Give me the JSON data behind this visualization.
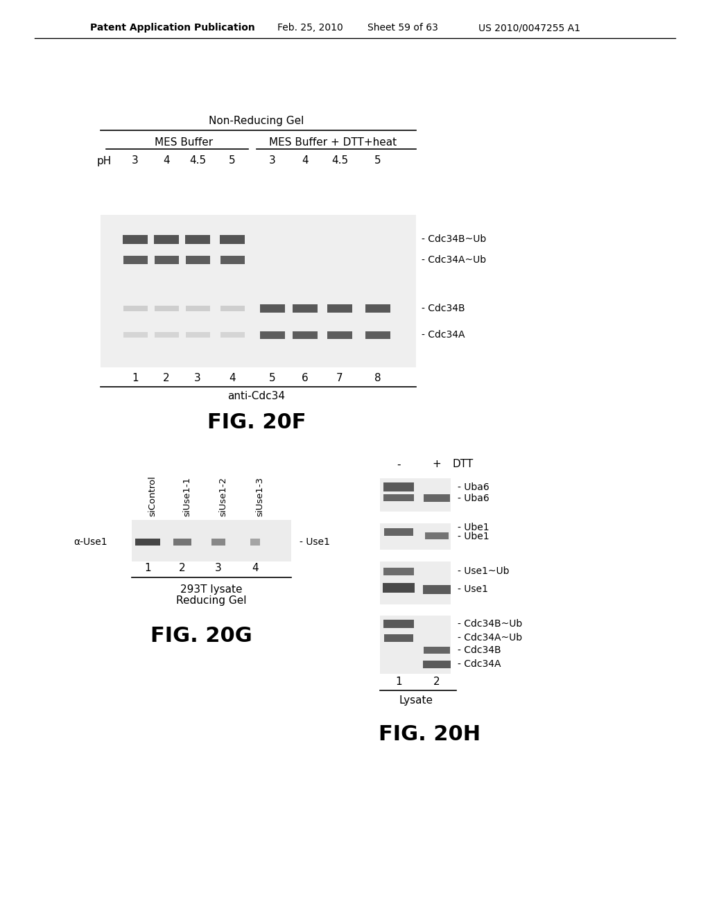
{
  "bg_color": "#ffffff",
  "header_text": "Patent Application Publication",
  "header_date": "Feb. 25, 2010",
  "header_sheet": "Sheet 59 of 63",
  "header_patent": "US 2010/0047255 A1",
  "fig20F": {
    "title": "Non-Reducing Gel",
    "group1_label": "MES Buffer",
    "group2_label": "MES Buffer + DTT+heat",
    "ph_label": "pH",
    "ph_values_g1": [
      "3",
      "4",
      "4.5",
      "5"
    ],
    "ph_values_g2": [
      "3",
      "4",
      "4.5",
      "5"
    ],
    "lane_numbers": [
      "1",
      "2",
      "3",
      "4",
      "5",
      "6",
      "7",
      "8"
    ],
    "bottom_label": "anti-Cdc34",
    "band_labels": [
      "- Cdc34B~Ub",
      "- Cdc34A~Ub",
      "- Cdc34B",
      "- Cdc34A"
    ],
    "fig_label": "FIG. 20F"
  },
  "fig20G": {
    "col_labels": [
      "siControl",
      "siUse1-1",
      "siUse1-2",
      "siUse1-3"
    ],
    "row_label": "α-Use1",
    "band_label": "- Use1",
    "lane_numbers": [
      "1",
      "2",
      "3",
      "4"
    ],
    "bottom_label1": "293T lysate",
    "bottom_label2": "Reducing Gel",
    "fig_label": "FIG. 20G"
  },
  "fig20H": {
    "col_minus": "-",
    "col_plus": "+",
    "dtt_label": "DTT",
    "band_labels_right": [
      "- Uba6",
      "- Uba6",
      "- Ube1",
      "- Ube1",
      "- Use1~Ub",
      "- Use1",
      "- Cdc34B~Ub",
      "- Cdc34A~Ub",
      "- Cdc34B",
      "- Cdc34A"
    ],
    "lane_numbers": [
      "1",
      "2"
    ],
    "bottom_label": "Lysate",
    "fig_label": "FIG. 20H"
  }
}
